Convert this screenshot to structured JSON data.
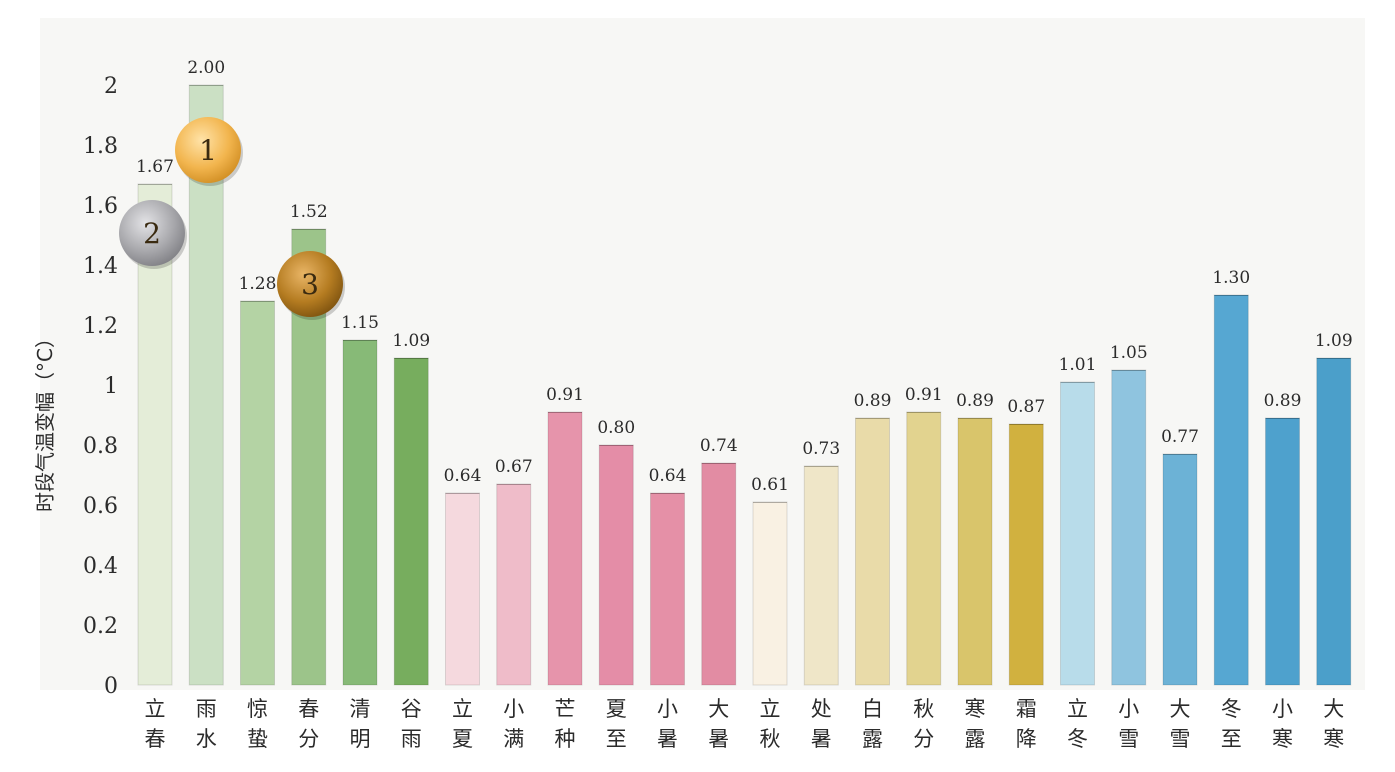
{
  "chart_data": {
    "type": "bar",
    "title": "",
    "xlabel": "",
    "ylabel": "时段气温变幅（°C）",
    "ylim": [
      0,
      2.1
    ],
    "yticks": [
      "0",
      "0.2",
      "0.4",
      "0.6",
      "0.8",
      "1",
      "1.2",
      "1.4",
      "1.6",
      "1.8",
      "2"
    ],
    "categories": [
      "立春",
      "雨水",
      "惊蛰",
      "春分",
      "清明",
      "谷雨",
      "立夏",
      "小满",
      "芒种",
      "夏至",
      "小暑",
      "大暑",
      "立秋",
      "处暑",
      "白露",
      "秋分",
      "寒露",
      "霜降",
      "立冬",
      "小雪",
      "大雪",
      "冬至",
      "小寒",
      "大寒"
    ],
    "values": [
      1.67,
      2.0,
      1.28,
      1.52,
      1.15,
      1.09,
      0.64,
      0.67,
      0.91,
      0.8,
      0.64,
      0.74,
      0.61,
      0.73,
      0.89,
      0.91,
      0.89,
      0.87,
      1.01,
      1.05,
      0.77,
      1.3,
      0.89,
      1.09
    ],
    "value_labels": [
      "1.67",
      "2.00",
      "1.28",
      "1.52",
      "1.15",
      "1.09",
      "0.64",
      "0.67",
      "0.91",
      "0.80",
      "0.64",
      "0.74",
      "0.61",
      "0.73",
      "0.89",
      "0.91",
      "0.89",
      "0.87",
      "1.01",
      "1.05",
      "0.77",
      "1.30",
      "0.89",
      "1.09"
    ],
    "bar_colors": [
      "#e4edd8",
      "#cbe0c4",
      "#b4d3a4",
      "#9cc48a",
      "#87ba77",
      "#77ad5e",
      "#f5d9de",
      "#efbcc9",
      "#e694ab",
      "#e48da7",
      "#e590a7",
      "#e28ca3",
      "#f9f1e3",
      "#efe6c8",
      "#e9dba9",
      "#e2d38f",
      "#d9c56b",
      "#d1b13f",
      "#b8dcea",
      "#8fc4df",
      "#6cb2d6",
      "#56a7d2",
      "#4ea1cd",
      "#4b9fca"
    ],
    "grid": false,
    "legend": "none",
    "rank_badges": [
      {
        "label": "1",
        "category": "雨水",
        "color": "#f2b54e"
      },
      {
        "label": "2",
        "category": "立春",
        "color": "#a9a9ad"
      },
      {
        "label": "3",
        "category": "春分",
        "color": "#b57c21"
      }
    ]
  }
}
